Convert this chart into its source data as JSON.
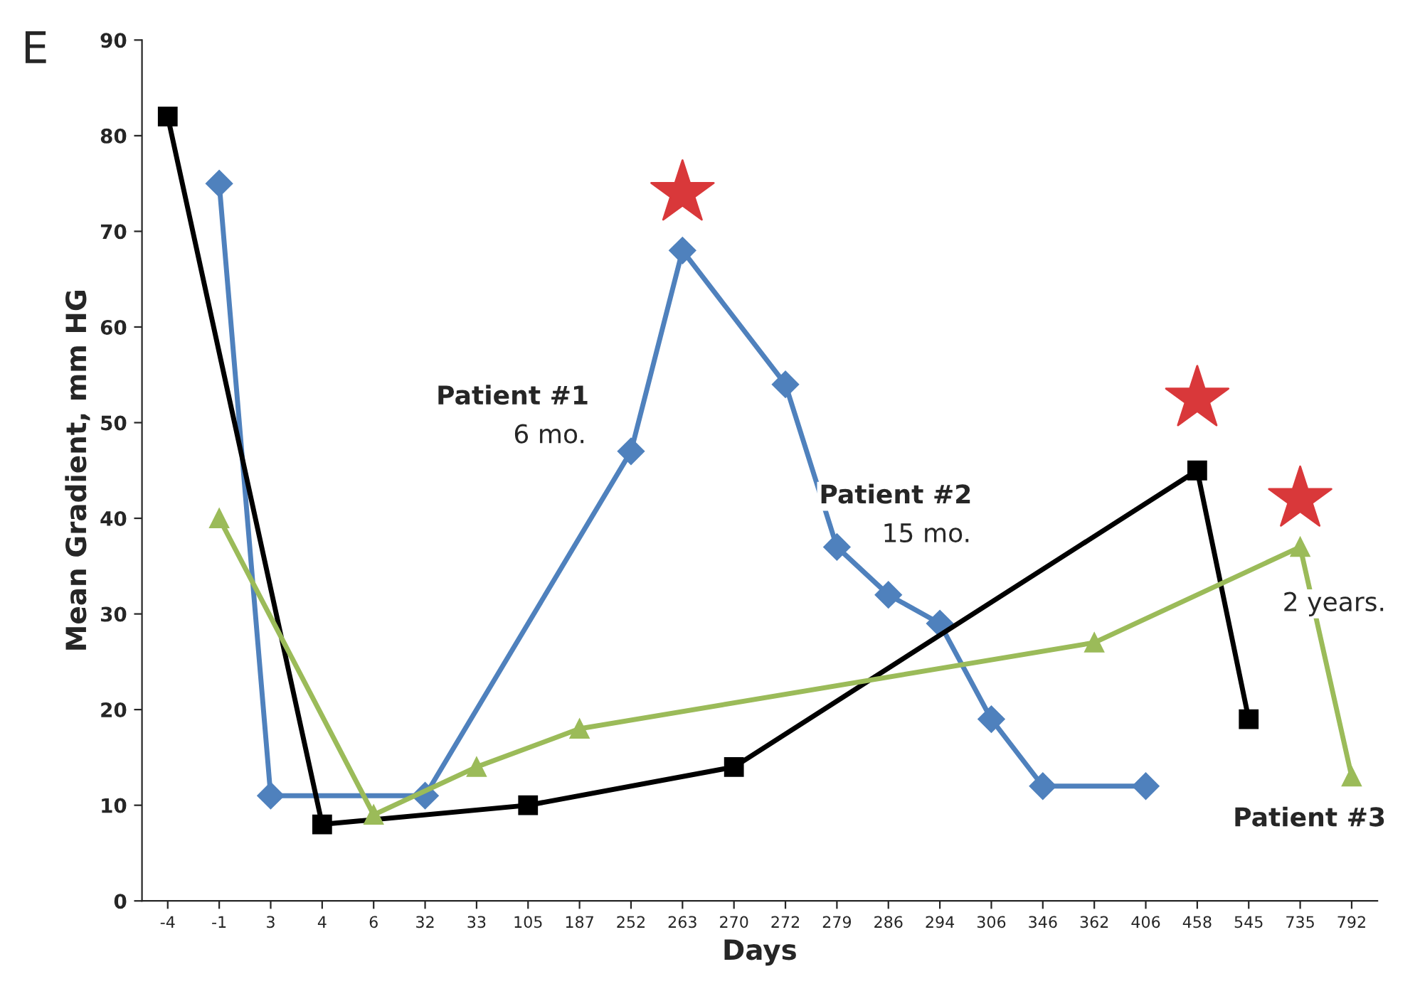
{
  "chart_data": {
    "type": "line",
    "title": "E",
    "xlabel": "Days",
    "ylabel": "Mean Gradient, mm HG",
    "categories": [
      "-4",
      "-1",
      "3",
      "4",
      "6",
      "32",
      "33",
      "105",
      "187",
      "252",
      "263",
      "270",
      "272",
      "279",
      "286",
      "294",
      "306",
      "346",
      "362",
      "406",
      "458",
      "545",
      "735",
      "792"
    ],
    "series": [
      {
        "color": "#4f81bd",
        "marker": "diamond",
        "values": [
          null,
          75,
          11,
          null,
          null,
          11,
          null,
          null,
          null,
          47,
          68,
          null,
          54,
          37,
          32,
          29,
          19,
          12,
          null,
          12,
          null,
          null,
          null,
          null
        ]
      },
      {
        "color": "#000000",
        "marker": "square",
        "values": [
          82,
          null,
          null,
          8,
          null,
          null,
          null,
          10,
          null,
          null,
          null,
          14,
          null,
          null,
          null,
          null,
          null,
          null,
          null,
          null,
          45,
          19,
          null,
          null
        ]
      },
      {
        "color": "#9bbb59",
        "marker": "triangle",
        "values": [
          null,
          40,
          null,
          null,
          9,
          null,
          14,
          null,
          18,
          null,
          null,
          null,
          null,
          null,
          null,
          null,
          null,
          null,
          27,
          null,
          null,
          null,
          37,
          13
        ]
      }
    ],
    "ylim": [
      0,
      90
    ],
    "yticks": [
      0,
      10,
      20,
      30,
      40,
      50,
      60,
      70,
      80,
      90
    ],
    "grid": false,
    "annotations": [
      "Patient #1",
      "6 mo.",
      "Patient #2",
      "15 mo.",
      "2 years.",
      "Patient #3"
    ]
  }
}
